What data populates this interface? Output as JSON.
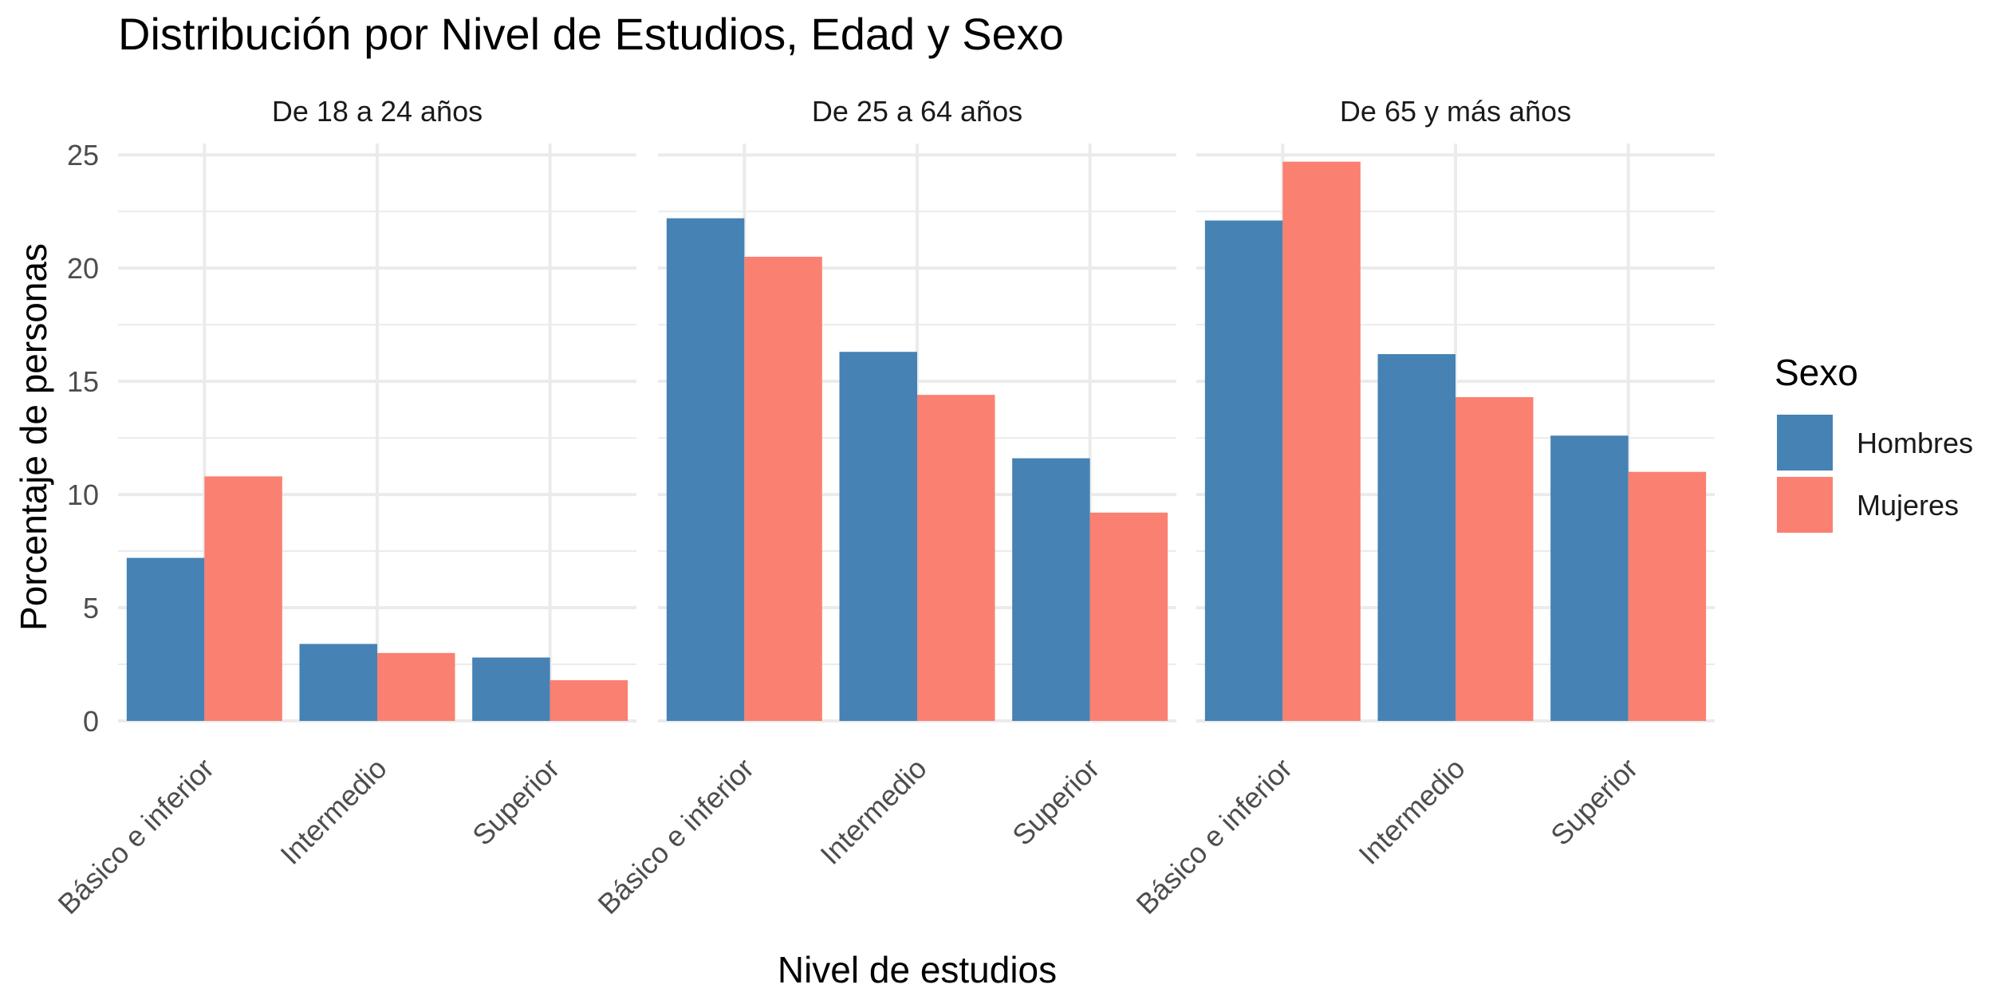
{
  "chart_data": {
    "type": "bar",
    "title": "Distribución por Nivel de Estudios, Edad y Sexo",
    "xlabel": "Nivel de estudios",
    "ylabel": "Porcentaje de personas",
    "ylim": [
      0,
      25.5
    ],
    "yticks": [
      0,
      5,
      10,
      15,
      20,
      25
    ],
    "grid": true,
    "categories": [
      "Básico e inferior",
      "Intermedio",
      "Superior"
    ],
    "legend": {
      "title": "Sexo",
      "position": "right",
      "items": [
        {
          "name": "Hombres",
          "color": "#4682B4"
        },
        {
          "name": "Mujeres",
          "color": "#FA8072"
        }
      ]
    },
    "facets": [
      {
        "label": "De 18 a 24 años",
        "series": [
          {
            "name": "Hombres",
            "values": [
              7.2,
              3.4,
              2.8
            ]
          },
          {
            "name": "Mujeres",
            "values": [
              10.8,
              3.0,
              1.8
            ]
          }
        ]
      },
      {
        "label": "De 25 a 64 años",
        "series": [
          {
            "name": "Hombres",
            "values": [
              22.2,
              16.3,
              11.6
            ]
          },
          {
            "name": "Mujeres",
            "values": [
              20.5,
              14.4,
              9.2
            ]
          }
        ]
      },
      {
        "label": "De 65 y más años",
        "series": [
          {
            "name": "Hombres",
            "values": [
              22.1,
              16.2,
              12.6
            ]
          },
          {
            "name": "Mujeres",
            "values": [
              24.7,
              14.3,
              11.0
            ]
          }
        ]
      }
    ]
  }
}
